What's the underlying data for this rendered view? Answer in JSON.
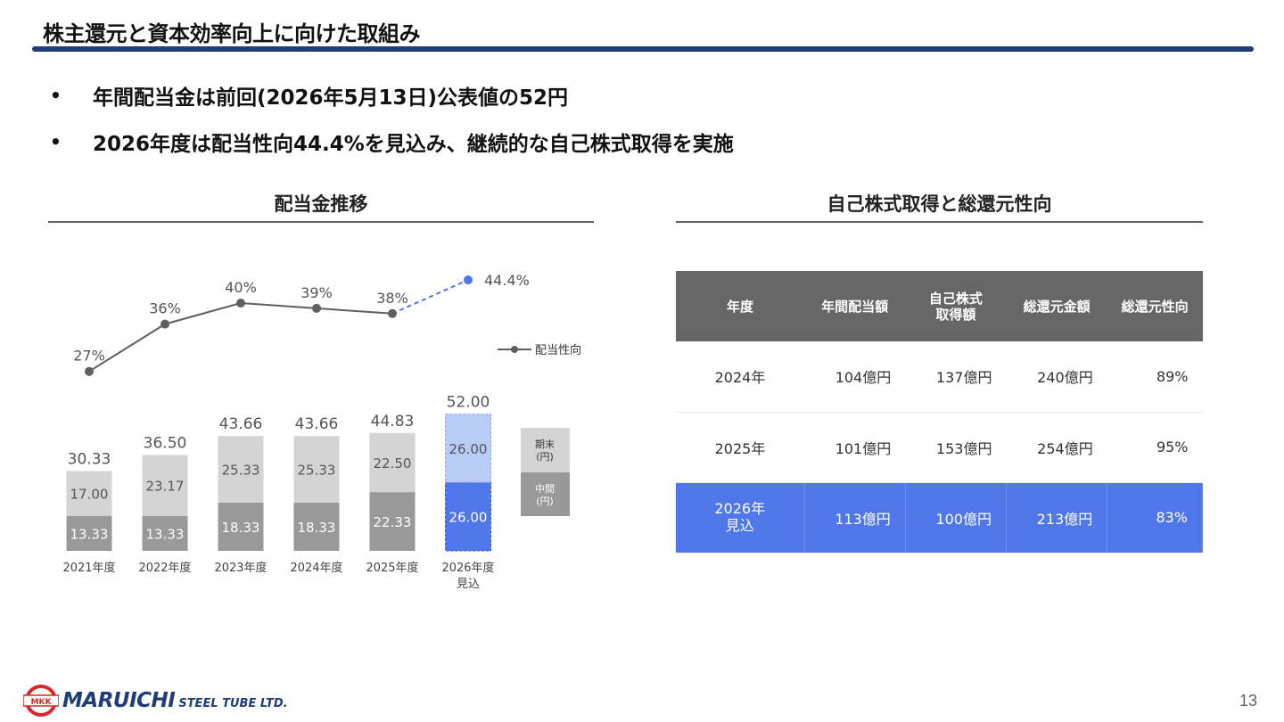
{
  "title": "株主還元と資本効率向上に向けた取組み",
  "bullets": [
    "年間配当金は前回(2026年5月13日)公表値の52円",
    "2026年度は配当性向44.4%を見込み、継続的な自己株式取得を実施"
  ],
  "left_section_title": "配当金推移",
  "right_section_title": "自己株式取得と総還元性向",
  "chart_data": {
    "type": "bar",
    "stacked": true,
    "categories": [
      "2021年度",
      "2022年度",
      "2023年度",
      "2024年度",
      "2025年度",
      "2026年度\n見込"
    ],
    "series": [
      {
        "name": "中間(円)",
        "values": [
          13.33,
          13.33,
          18.33,
          18.33,
          22.33,
          26.0
        ],
        "value_labels": [
          "13.33",
          "13.33",
          "18.33",
          "18.33",
          "22.33",
          "26.00"
        ]
      },
      {
        "name": "期末(円)",
        "values": [
          17.0,
          23.17,
          25.33,
          25.33,
          22.5,
          26.0
        ],
        "value_labels": [
          "17.00",
          "23.17",
          "25.33",
          "25.33",
          "22.50",
          "26.00"
        ]
      }
    ],
    "totals": [
      "30.33",
      "36.50",
      "43.66",
      "43.66",
      "44.83",
      "52.00"
    ],
    "line_series": {
      "name": "配当性向",
      "values": [
        27,
        36,
        40,
        39,
        38,
        44.4
      ],
      "labels": [
        "27%",
        "36%",
        "40%",
        "39%",
        "38%",
        "44.4%"
      ],
      "forecast_from_index": 4
    },
    "legend": {
      "line": "配当性向",
      "bars": [
        {
          "label_line1": "期末",
          "label_line2": "(円)"
        },
        {
          "label_line1": "中間",
          "label_line2": "(円)"
        }
      ],
      "placement": "right"
    },
    "colors": {
      "interim": "#999999",
      "year_end": "#d4d4d4",
      "forecast_interim": "#4f77ea",
      "forecast_year_end": "#b9cbf7",
      "line": "#5f5f5f",
      "forecast_line": "#4f77ea",
      "label_text": "#555555"
    }
  },
  "table": {
    "headers": [
      "年度",
      "年間配当額",
      "自己株式\n取得額",
      "総還元金額",
      "総還元性向"
    ],
    "rows": [
      {
        "year": "2024年",
        "dividend": "104億円",
        "buyback": "137億円",
        "total": "240億円",
        "ratio": "89%"
      },
      {
        "year": "2025年",
        "dividend": "101億円",
        "buyback": "153億円",
        "total": "254億円",
        "ratio": "95%"
      },
      {
        "year": "2026年\n見込",
        "dividend": "113億円",
        "buyback": "100億円",
        "total": "213億円",
        "ratio": "83%"
      }
    ],
    "highlight_color": "#4f77ea",
    "header_color": "#666666"
  },
  "logo": {
    "mark": "MKK",
    "name": "MARUICHI",
    "sub": "STEEL TUBE LTD."
  },
  "page_number": "13"
}
